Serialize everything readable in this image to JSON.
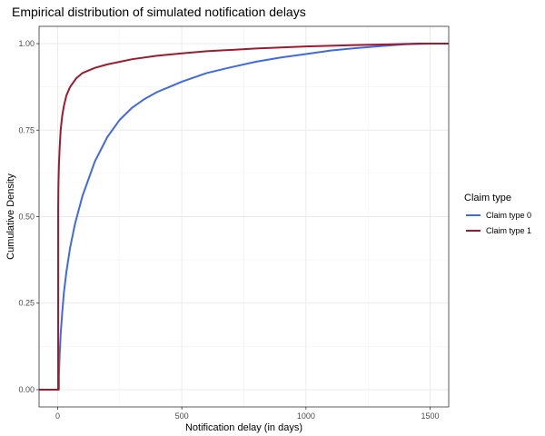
{
  "chart_data": {
    "type": "line",
    "title": "Empirical distribution of simulated notification delays",
    "xlabel": "Notification delay (in days)",
    "ylabel": "Cumulative Density",
    "xlim": [
      -75,
      1575
    ],
    "ylim": [
      -0.05,
      1.05
    ],
    "x_ticks": [
      0,
      500,
      1000,
      1500
    ],
    "x_tick_labels": [
      "0",
      "500",
      "1000",
      "1500"
    ],
    "y_ticks": [
      0,
      0.25,
      0.5,
      0.75,
      1.0
    ],
    "y_tick_labels": [
      "0.00",
      "0.25",
      "0.50",
      "0.75",
      "1.00"
    ],
    "grid": true,
    "legend": {
      "title": "Claim type",
      "position": "right"
    },
    "series": [
      {
        "name": "Claim type 0",
        "color": "#4169e1",
        "points": [
          [
            -75,
            0
          ],
          [
            5,
            0
          ],
          [
            5,
            0.04
          ],
          [
            8,
            0.1
          ],
          [
            12,
            0.16
          ],
          [
            18,
            0.22
          ],
          [
            25,
            0.28
          ],
          [
            35,
            0.34
          ],
          [
            50,
            0.41
          ],
          [
            70,
            0.48
          ],
          [
            100,
            0.56
          ],
          [
            150,
            0.66
          ],
          [
            200,
            0.73
          ],
          [
            250,
            0.78
          ],
          [
            300,
            0.815
          ],
          [
            350,
            0.84
          ],
          [
            400,
            0.86
          ],
          [
            450,
            0.875
          ],
          [
            500,
            0.89
          ],
          [
            600,
            0.915
          ],
          [
            700,
            0.932
          ],
          [
            800,
            0.948
          ],
          [
            900,
            0.96
          ],
          [
            1000,
            0.97
          ],
          [
            1100,
            0.98
          ],
          [
            1200,
            0.987
          ],
          [
            1300,
            0.993
          ],
          [
            1400,
            0.998
          ],
          [
            1500,
            1.0
          ],
          [
            1575,
            1.0
          ]
        ]
      },
      {
        "name": "Claim type 1",
        "color": "#9b1b30",
        "points": [
          [
            -75,
            0
          ],
          [
            2,
            0
          ],
          [
            2,
            0.52
          ],
          [
            3,
            0.59
          ],
          [
            5,
            0.65
          ],
          [
            8,
            0.7
          ],
          [
            12,
            0.75
          ],
          [
            18,
            0.79
          ],
          [
            25,
            0.82
          ],
          [
            35,
            0.85
          ],
          [
            50,
            0.875
          ],
          [
            75,
            0.9
          ],
          [
            100,
            0.915
          ],
          [
            150,
            0.93
          ],
          [
            200,
            0.94
          ],
          [
            300,
            0.955
          ],
          [
            400,
            0.965
          ],
          [
            500,
            0.972
          ],
          [
            600,
            0.978
          ],
          [
            800,
            0.986
          ],
          [
            1000,
            0.992
          ],
          [
            1200,
            0.996
          ],
          [
            1350,
            0.998
          ],
          [
            1450,
            1.0
          ],
          [
            1575,
            1.0
          ]
        ]
      }
    ]
  }
}
